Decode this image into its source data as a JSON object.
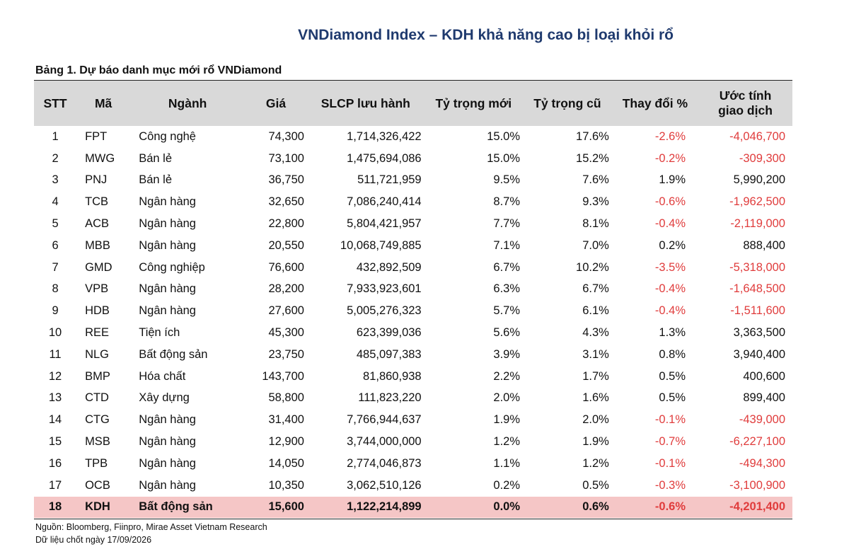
{
  "title": "VNDiamond Index – KDH khả năng cao bị loại khỏi rổ",
  "caption": "Bảng 1. Dự báo danh mục mới rổ VNDiamond",
  "headers": [
    "STT",
    "Mã",
    "Ngành",
    "Giá",
    "SLCP lưu hành",
    "Tỷ trọng mới",
    "Tỷ trọng cũ",
    "Thay đổi %",
    "Ước tính",
    "giao dịch"
  ],
  "rows": [
    [
      "1",
      "FPT",
      "Công nghệ",
      "74,300",
      "1,714,326,422",
      "15.0%",
      "17.6%",
      "-2.6%",
      "-4,046,700"
    ],
    [
      "2",
      "MWG",
      "Bán lẻ",
      "73,100",
      "1,475,694,086",
      "15.0%",
      "15.2%",
      "-0.2%",
      "-309,300"
    ],
    [
      "3",
      "PNJ",
      "Bán lẻ",
      "36,750",
      "511,721,959",
      "9.5%",
      "7.6%",
      "1.9%",
      "5,990,200"
    ],
    [
      "4",
      "TCB",
      "Ngân hàng",
      "32,650",
      "7,086,240,414",
      "8.7%",
      "9.3%",
      "-0.6%",
      "-1,962,500"
    ],
    [
      "5",
      "ACB",
      "Ngân hàng",
      "22,800",
      "5,804,421,957",
      "7.7%",
      "8.1%",
      "-0.4%",
      "-2,119,000"
    ],
    [
      "6",
      "MBB",
      "Ngân hàng",
      "20,550",
      "10,068,749,885",
      "7.1%",
      "7.0%",
      "0.2%",
      "888,400"
    ],
    [
      "7",
      "GMD",
      "Công nghiệp",
      "76,600",
      "432,892,509",
      "6.7%",
      "10.2%",
      "-3.5%",
      "-5,318,000"
    ],
    [
      "8",
      "VPB",
      "Ngân hàng",
      "28,200",
      "7,933,923,601",
      "6.3%",
      "6.7%",
      "-0.4%",
      "-1,648,500"
    ],
    [
      "9",
      "HDB",
      "Ngân hàng",
      "27,600",
      "5,005,276,323",
      "5.7%",
      "6.1%",
      "-0.4%",
      "-1,511,600"
    ],
    [
      "10",
      "REE",
      "Tiện ích",
      "45,300",
      "623,399,036",
      "5.6%",
      "4.3%",
      "1.3%",
      "3,363,500"
    ],
    [
      "11",
      "NLG",
      "Bất động sản",
      "23,750",
      "485,097,383",
      "3.9%",
      "3.1%",
      "0.8%",
      "3,940,400"
    ],
    [
      "12",
      "BMP",
      "Hóa chất",
      "143,700",
      "81,860,938",
      "2.2%",
      "1.7%",
      "0.5%",
      "400,600"
    ],
    [
      "13",
      "CTD",
      "Xây dựng",
      "58,800",
      "111,823,220",
      "2.0%",
      "1.6%",
      "0.5%",
      "899,400"
    ],
    [
      "14",
      "CTG",
      "Ngân hàng",
      "31,400",
      "7,766,944,637",
      "1.9%",
      "2.0%",
      "-0.1%",
      "-439,000"
    ],
    [
      "15",
      "MSB",
      "Ngân hàng",
      "12,900",
      "3,744,000,000",
      "1.2%",
      "1.9%",
      "-0.7%",
      "-6,227,100"
    ],
    [
      "16",
      "TPB",
      "Ngân hàng",
      "14,050",
      "2,774,046,873",
      "1.1%",
      "1.2%",
      "-0.1%",
      "-494,300"
    ],
    [
      "17",
      "OCB",
      "Ngân hàng",
      "10,350",
      "3,062,510,126",
      "0.2%",
      "0.5%",
      "-0.3%",
      "-3,100,900"
    ],
    [
      "18",
      "KDH",
      "Bất động sản",
      "15,600",
      "1,122,214,899",
      "0.0%",
      "0.6%",
      "-0.6%",
      "-4,201,400"
    ]
  ],
  "highlight_row_index": 17,
  "colors": {
    "title": "#1f3a6e",
    "header_bg": "#d9d9d9",
    "highlight_bg": "#f5c6c6",
    "negative": "#e03c3c"
  },
  "footer": {
    "source": "Nguồn: Bloomberg, Fiinpro, Mirae Asset Vietnam Research",
    "date": "Dữ liệu chốt ngày 17/09/2026"
  }
}
